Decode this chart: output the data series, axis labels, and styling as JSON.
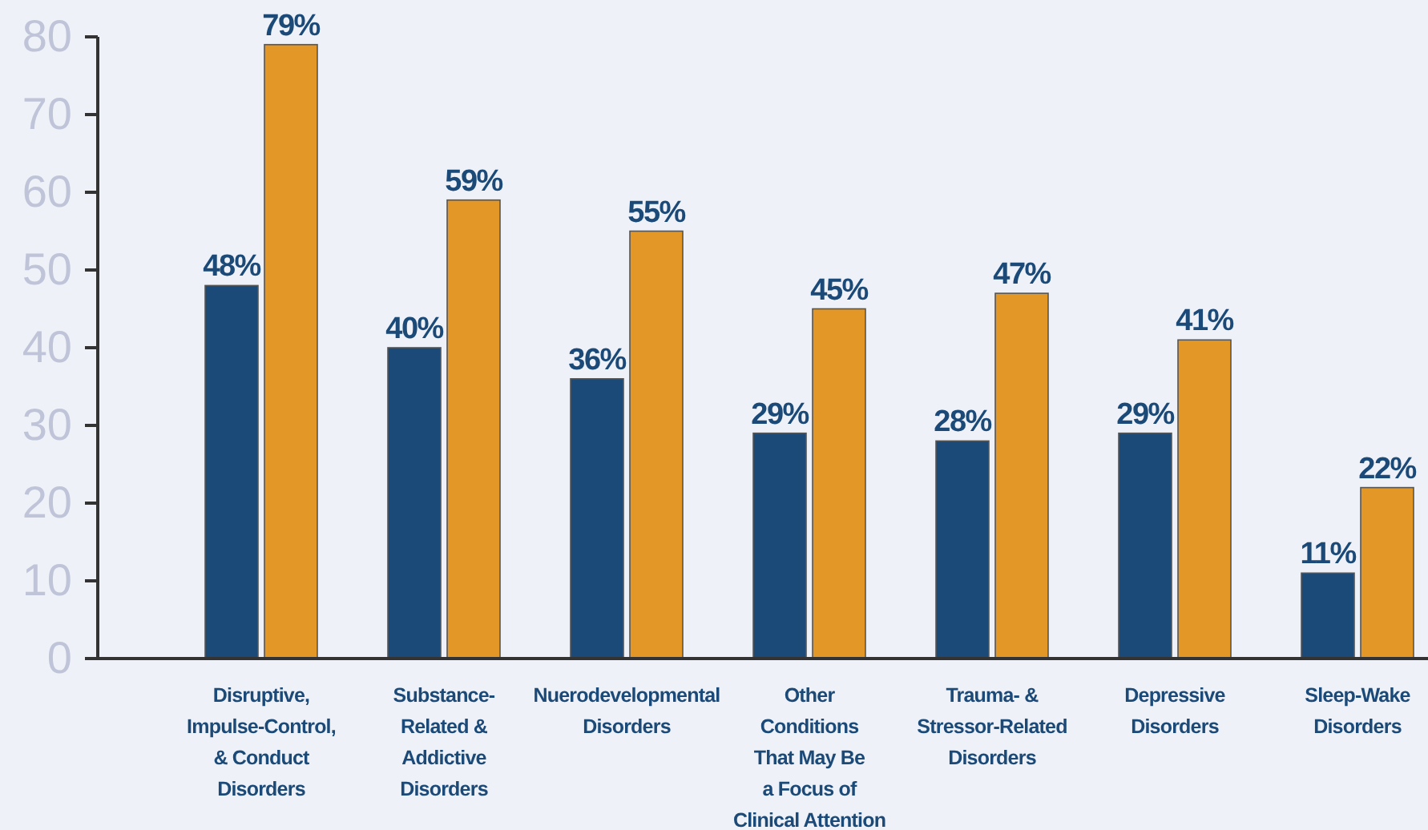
{
  "chart_data": {
    "type": "bar",
    "categories": [
      "Disruptive,\nImpulse-Control,\n& Conduct\nDisorders",
      "Substance-\nRelated &\nAddictive\nDisorders",
      "Nuerodevelopmental\nDisorders",
      "Other\nConditions\nThat May Be\na Focus of\nClinical Attention",
      "Trauma- &\nStressor-Related\nDisorders",
      "Depressive\nDisorders",
      "Sleep-Wake\nDisorders"
    ],
    "series": [
      {
        "color": "#1c4a78",
        "values": [
          48,
          40,
          36,
          29,
          28,
          29,
          11
        ],
        "value_labels": [
          "48%",
          "40%",
          "36%",
          "29%",
          "28%",
          "29%",
          "11%"
        ]
      },
      {
        "color": "#e39726",
        "values": [
          79,
          59,
          55,
          45,
          47,
          41,
          22
        ],
        "value_labels": [
          "79%",
          "59%",
          "55%",
          "45%",
          "47%",
          "41%",
          "22%"
        ]
      }
    ],
    "ylim": [
      0,
      80
    ],
    "yticks": [
      0,
      10,
      20,
      30,
      40,
      50,
      60,
      70,
      80
    ],
    "grid": false
  }
}
